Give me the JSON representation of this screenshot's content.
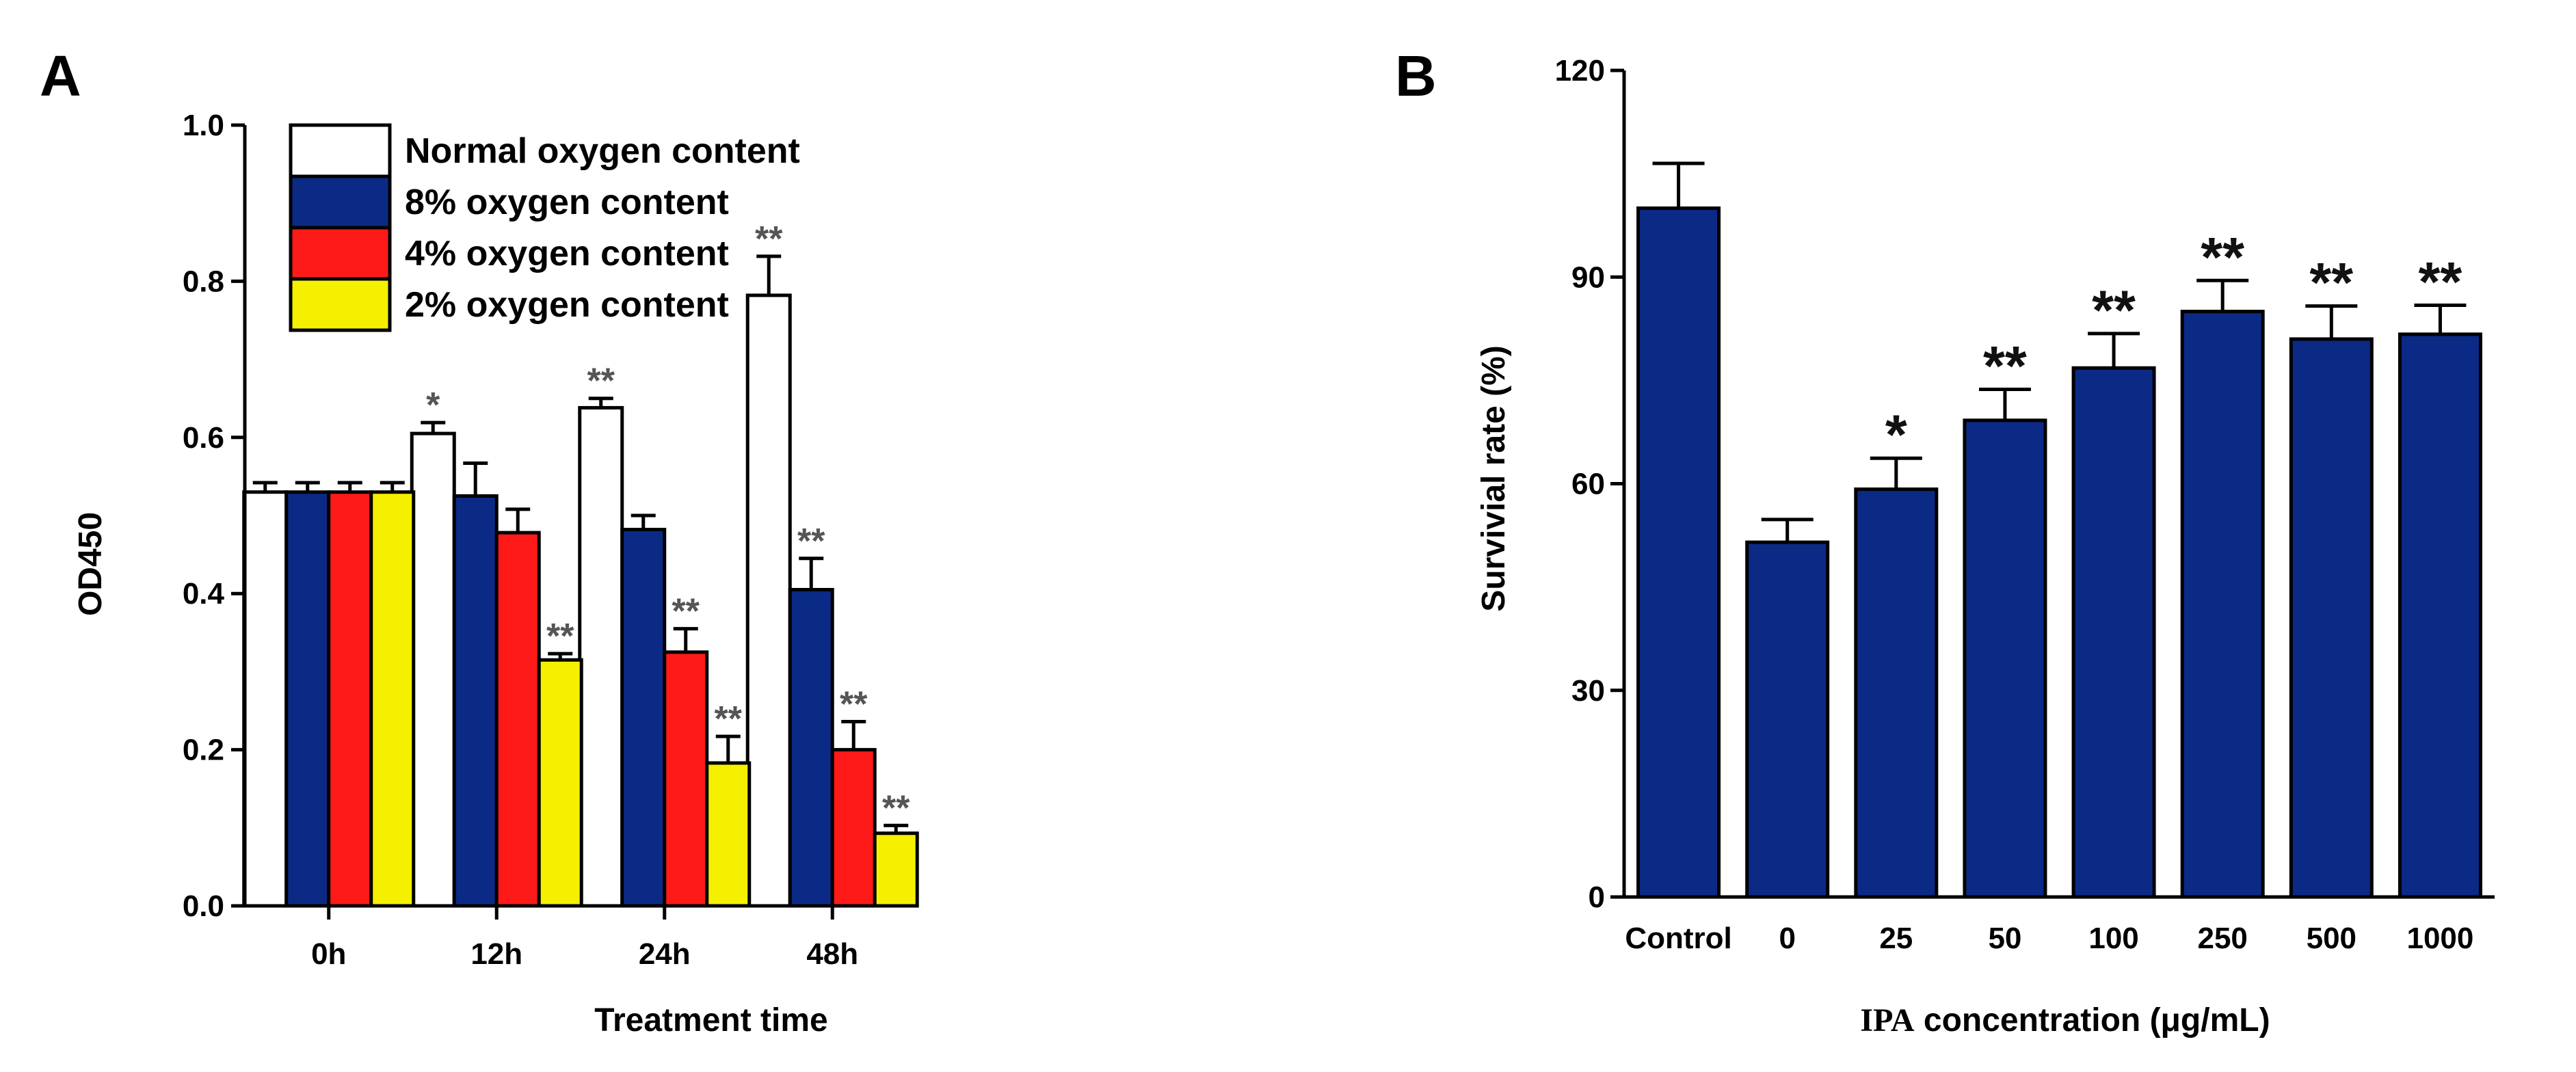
{
  "figure": {
    "panel_a_letter": "A",
    "panel_b_letter": "B"
  },
  "chart_data": [
    {
      "panel": "A",
      "type": "bar",
      "title": "",
      "xlabel": "Treatment time",
      "ylabel": "OD450",
      "ylim": [
        0,
        1.0
      ],
      "yticks": [
        "0.0",
        "0.2",
        "0.4",
        "0.6",
        "0.8",
        "1.0"
      ],
      "grid": false,
      "legend_position": "top-left",
      "categories": [
        "0h",
        "12h",
        "24h",
        "48h"
      ],
      "series": [
        {
          "name": "Normal  oxygen content",
          "color": "#ffffff",
          "values": [
            0.53,
            0.605,
            0.638,
            0.782
          ],
          "errors": [
            0.012,
            0.014,
            0.012,
            0.05
          ],
          "annotations": [
            "",
            "*",
            "**",
            "**"
          ]
        },
        {
          "name": "8% oxygen content",
          "color": "#0b2a86",
          "values": [
            0.53,
            0.525,
            0.482,
            0.405
          ],
          "errors": [
            0.012,
            0.042,
            0.018,
            0.04
          ],
          "annotations": [
            "",
            "",
            "",
            "**"
          ]
        },
        {
          "name": "4% oxygen content",
          "color": "#ff1a1a",
          "values": [
            0.53,
            0.478,
            0.325,
            0.2
          ],
          "errors": [
            0.012,
            0.03,
            0.03,
            0.036
          ],
          "annotations": [
            "",
            "",
            "**",
            "**"
          ]
        },
        {
          "name": "2% oxygen content",
          "color": "#f5f000",
          "values": [
            0.53,
            0.315,
            0.183,
            0.093
          ],
          "errors": [
            0.012,
            0.008,
            0.034,
            0.01
          ],
          "annotations": [
            "",
            "**",
            "**",
            "**"
          ]
        }
      ]
    },
    {
      "panel": "B",
      "type": "bar",
      "title": "",
      "xlabel_bold": "IPA",
      "xlabel_rest": " concentration (μg/mL)",
      "ylabel": "Survivial rate (%)",
      "ylim": [
        0,
        120
      ],
      "yticks": [
        "0",
        "30",
        "60",
        "90",
        "120"
      ],
      "grid": false,
      "categories": [
        "Control",
        "0",
        "25",
        "50",
        "100",
        "250",
        "500",
        "1000"
      ],
      "color": "#0b2a86",
      "values": [
        100,
        51.5,
        59.2,
        69.2,
        76.8,
        85.0,
        81.0,
        81.7
      ],
      "errors": [
        6.5,
        3.3,
        4.5,
        4.5,
        5.0,
        4.5,
        4.8,
        4.2
      ],
      "annotations": [
        "",
        "",
        "*",
        "**",
        "**",
        "**",
        "**",
        "**"
      ]
    }
  ]
}
